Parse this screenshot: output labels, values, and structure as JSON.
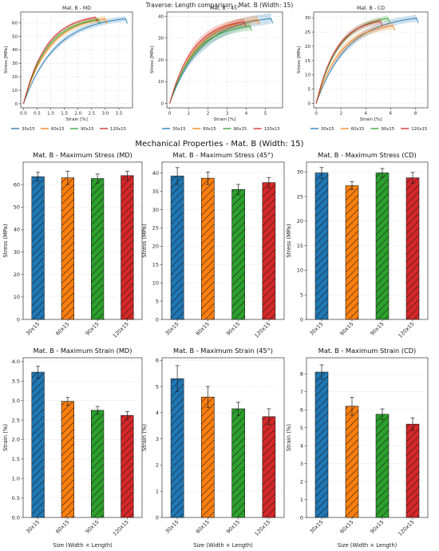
{
  "top": {
    "suptitle": "Traverse: Length comparison - Mat. B (Width: 15)",
    "legend": [
      "30x15",
      "60x15",
      "90x15",
      "120x15"
    ]
  },
  "section_title": "Mechanical Properties - Mat. B (Width: 15)",
  "colors": {
    "30x15": "#1f77b4",
    "60x15": "#ff7f0e",
    "90x15": "#2ca02c",
    "120x15": "#d62728"
  },
  "chart_data": [
    {
      "id": "md_curve",
      "type": "line",
      "title": "Mat. B - MD",
      "xlabel": "Strain [%]",
      "ylabel": "Stress [MPa]",
      "xlim": [
        -0.1,
        4.0
      ],
      "ylim": [
        -3,
        68
      ],
      "xticks": [
        0,
        0.5,
        1.0,
        1.5,
        2.0,
        2.5,
        3.0,
        3.5
      ],
      "xtick_labels": [
        "0.0",
        "0.5",
        "1.0",
        "1.5",
        "2.0",
        "2.5",
        "3.0",
        "3.5"
      ],
      "yticks": [
        0,
        10,
        20,
        30,
        40,
        50,
        60
      ],
      "series": [
        {
          "name": "30x15",
          "end_x": 3.75,
          "peak_y": 63.0,
          "band": 2.0
        },
        {
          "name": "60x15",
          "end_x": 3.0,
          "peak_y": 63.0,
          "band": 2.0
        },
        {
          "name": "90x15",
          "end_x": 2.75,
          "peak_y": 62.5,
          "band": 1.5
        },
        {
          "name": "120x15",
          "end_x": 2.65,
          "peak_y": 64.0,
          "band": 1.2
        }
      ]
    },
    {
      "id": "45_curve",
      "type": "line",
      "title": "Mat. B - 45°",
      "xlabel": "Strain [%]",
      "ylabel": "Stress [MPa]",
      "xlim": [
        -0.15,
        5.9
      ],
      "ylim": [
        -2,
        42
      ],
      "xticks": [
        0,
        1,
        2,
        3,
        4,
        5
      ],
      "xtick_labels": [
        "0",
        "1",
        "2",
        "3",
        "4",
        "5"
      ],
      "yticks": [
        0,
        10,
        20,
        30,
        40
      ],
      "series": [
        {
          "name": "30x15",
          "end_x": 5.3,
          "peak_y": 39.0,
          "band": 2.5
        },
        {
          "name": "60x15",
          "end_x": 4.6,
          "peak_y": 38.5,
          "band": 2.0
        },
        {
          "name": "90x15",
          "end_x": 4.2,
          "peak_y": 35.5,
          "band": 2.0
        },
        {
          "name": "120x15",
          "end_x": 3.9,
          "peak_y": 37.5,
          "band": 1.8
        }
      ]
    },
    {
      "id": "cd_curve",
      "type": "line",
      "title": "Mat. B - CD",
      "xlabel": "Strain [%]",
      "ylabel": "Stress [MPa]",
      "xlim": [
        -0.2,
        9.0
      ],
      "ylim": [
        -1.5,
        32
      ],
      "xticks": [
        0,
        2,
        4,
        6,
        8
      ],
      "xtick_labels": [
        "0",
        "2",
        "4",
        "6",
        "8"
      ],
      "yticks": [
        0,
        5,
        10,
        15,
        20,
        25,
        30
      ],
      "series": [
        {
          "name": "30x15",
          "end_x": 8.1,
          "peak_y": 29.8,
          "band": 1.2
        },
        {
          "name": "60x15",
          "end_x": 6.2,
          "peak_y": 27.2,
          "band": 1.2
        },
        {
          "name": "90x15",
          "end_x": 5.8,
          "peak_y": 29.8,
          "band": 1.0
        },
        {
          "name": "120x15",
          "end_x": 5.2,
          "peak_y": 28.8,
          "band": 1.0
        }
      ]
    },
    {
      "id": "md_stress",
      "type": "bar",
      "title": "Mat. B - Maximum Stress (MD)",
      "xlabel": "",
      "ylabel": "Stress (MPa)",
      "categories": [
        "30x15",
        "60x15",
        "90x15",
        "120x15"
      ],
      "values": [
        63.5,
        63.0,
        62.7,
        64.0
      ],
      "errors": [
        2.0,
        3.0,
        2.0,
        2.0
      ],
      "ylim": [
        0,
        70
      ],
      "yticks": [
        0,
        10,
        20,
        30,
        40,
        50,
        60
      ],
      "ytick_labels": [
        "0",
        "10",
        "20",
        "30",
        "40",
        "50",
        "60"
      ]
    },
    {
      "id": "45_stress",
      "type": "bar",
      "title": "Mat. B - Maximum Stress (45°)",
      "xlabel": "",
      "ylabel": "Stress (MPa)",
      "categories": [
        "30x15",
        "60x15",
        "90x15",
        "120x15"
      ],
      "values": [
        39.2,
        38.6,
        35.5,
        37.4
      ],
      "errors": [
        2.3,
        1.7,
        1.4,
        1.4
      ],
      "ylim": [
        0,
        43
      ],
      "yticks": [
        0,
        5,
        10,
        15,
        20,
        25,
        30,
        35,
        40
      ],
      "ytick_labels": [
        "0",
        "5",
        "10",
        "15",
        "20",
        "25",
        "30",
        "35",
        "40"
      ]
    },
    {
      "id": "cd_stress",
      "type": "bar",
      "title": "Mat. B - Maximum Stress (CD)",
      "xlabel": "",
      "ylabel": "Stress (MPa)",
      "categories": [
        "30x15",
        "60x15",
        "90x15",
        "120x15"
      ],
      "values": [
        29.8,
        27.2,
        29.8,
        28.8
      ],
      "errors": [
        1.1,
        0.8,
        0.9,
        1.1
      ],
      "ylim": [
        0,
        32
      ],
      "yticks": [
        0,
        5,
        10,
        15,
        20,
        25,
        30
      ],
      "ytick_labels": [
        "0",
        "5",
        "10",
        "15",
        "20",
        "25",
        "30"
      ]
    },
    {
      "id": "md_strain",
      "type": "bar",
      "title": "Mat. B - Maximum Strain (MD)",
      "xlabel": "Size (Width × Length)",
      "ylabel": "Strain (%)",
      "categories": [
        "30x15",
        "60x15",
        "90x15",
        "120x15"
      ],
      "values": [
        3.73,
        2.98,
        2.75,
        2.62
      ],
      "errors": [
        0.15,
        0.1,
        0.1,
        0.1
      ],
      "ylim": [
        0,
        4.1
      ],
      "yticks": [
        0,
        0.5,
        1.0,
        1.5,
        2.0,
        2.5,
        3.0,
        3.5,
        4.0
      ],
      "ytick_labels": [
        "0.0",
        "0.5",
        "1.0",
        "1.5",
        "2.0",
        "2.5",
        "3.0",
        "3.5",
        "4.0"
      ]
    },
    {
      "id": "45_strain",
      "type": "bar",
      "title": "Mat. B - Maximum Strain (45°)",
      "xlabel": "Size (Width × Length)",
      "ylabel": "Strain (%)",
      "categories": [
        "30x15",
        "60x15",
        "90x15",
        "120x15"
      ],
      "values": [
        5.3,
        4.6,
        4.15,
        3.85
      ],
      "errors": [
        0.5,
        0.4,
        0.25,
        0.3
      ],
      "ylim": [
        0,
        6.1
      ],
      "yticks": [
        0,
        1,
        2,
        3,
        4,
        5,
        6
      ],
      "ytick_labels": [
        "0",
        "1",
        "2",
        "3",
        "4",
        "5",
        "6"
      ]
    },
    {
      "id": "cd_strain",
      "type": "bar",
      "title": "Mat. B - Maximum Strain (CD)",
      "xlabel": "Size (Width × Length)",
      "ylabel": "Strain (%)",
      "categories": [
        "30x15",
        "60x15",
        "90x15",
        "120x15"
      ],
      "values": [
        8.1,
        6.2,
        5.75,
        5.2
      ],
      "errors": [
        0.4,
        0.5,
        0.3,
        0.35
      ],
      "ylim": [
        0,
        8.9
      ],
      "yticks": [
        0,
        1,
        2,
        3,
        4,
        5,
        6,
        7,
        8
      ],
      "ytick_labels": [
        "0",
        "1",
        "2",
        "3",
        "4",
        "5",
        "6",
        "7",
        "8"
      ]
    }
  ]
}
